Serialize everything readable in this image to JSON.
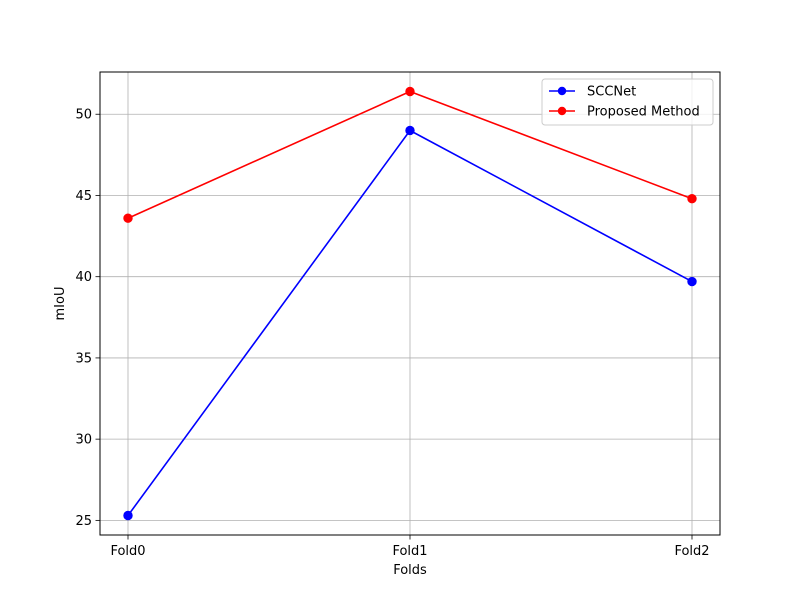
{
  "chart_data": {
    "type": "line",
    "title": "",
    "xlabel": "Folds",
    "ylabel": "mIoU",
    "categories": [
      "Fold0",
      "Fold1",
      "Fold2"
    ],
    "ylim": [
      24.1,
      52.6
    ],
    "yticks": [
      25,
      30,
      35,
      40,
      45,
      50
    ],
    "grid": true,
    "legend_position": "top-right",
    "series": [
      {
        "name": "SCCNet",
        "color": "#0000ff",
        "marker": "circle",
        "values": [
          25.3,
          49.0,
          39.7
        ]
      },
      {
        "name": "Proposed Method",
        "color": "#ff0000",
        "marker": "circle",
        "values": [
          43.6,
          51.4,
          44.8
        ]
      }
    ]
  }
}
